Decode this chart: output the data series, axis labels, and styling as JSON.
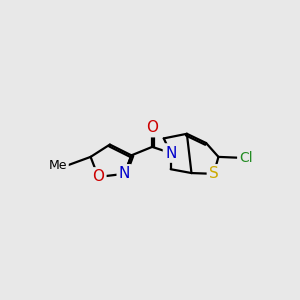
{
  "background_color": "#e8e8e8",
  "fig_width": 3.0,
  "fig_height": 3.0,
  "dpi": 100,
  "atom_colors": {
    "C": "#000000",
    "N": "#0000cc",
    "O": "#cc0000",
    "S": "#ccaa00",
    "Cl": "#228B22"
  }
}
